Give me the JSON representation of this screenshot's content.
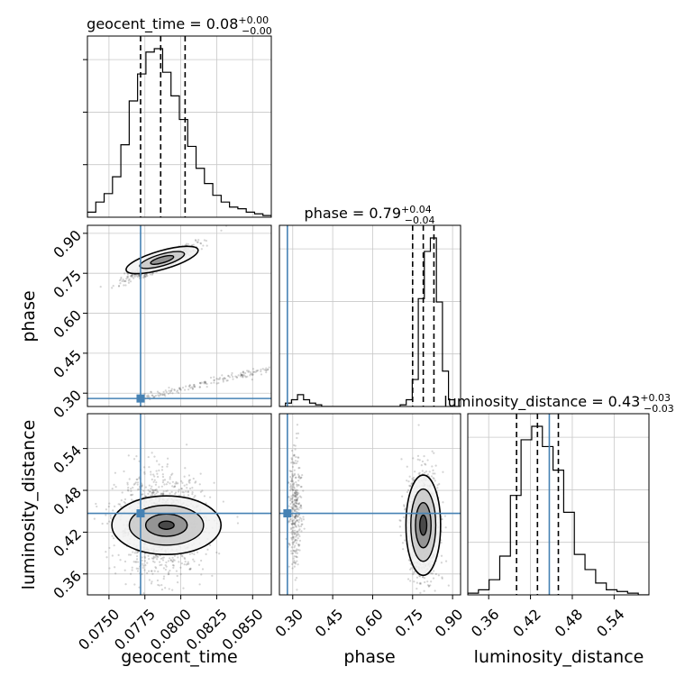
{
  "chart_data": {
    "type": "corner",
    "parameters": [
      {
        "name": "geocent_time",
        "median": "0.08",
        "err_plus": "+0.00",
        "err_minus": "−0.00",
        "range": [
          0.0735,
          0.0863
        ],
        "truth": 0.0772,
        "quantiles": [
          0.0772,
          0.0786,
          0.0803
        ],
        "ticks": [
          0.075,
          0.0775,
          0.08,
          0.0825,
          0.085
        ],
        "tick_labels": [
          "0.0750",
          "0.0775",
          "0.0800",
          "0.0825",
          "0.0850"
        ],
        "hist": [
          0.03,
          0.09,
          0.14,
          0.24,
          0.43,
          0.69,
          0.85,
          0.98,
          1.0,
          0.86,
          0.72,
          0.58,
          0.42,
          0.29,
          0.2,
          0.13,
          0.09,
          0.06,
          0.05,
          0.03,
          0.02,
          0.01
        ]
      },
      {
        "name": "phase",
        "median": "0.79",
        "err_plus": "+0.04",
        "err_minus": "−0.04",
        "range": [
          0.25,
          0.93
        ],
        "truth": 0.28,
        "quantiles": [
          0.75,
          0.79,
          0.83
        ],
        "ticks": [
          0.3,
          0.45,
          0.6,
          0.75,
          0.9
        ],
        "tick_labels": [
          "0.30",
          "0.45",
          "0.60",
          "0.75",
          "0.90"
        ],
        "hist": [
          0.0,
          0.02,
          0.04,
          0.07,
          0.04,
          0.02,
          0.01,
          0.0,
          0.0,
          0.0,
          0.0,
          0.0,
          0.0,
          0.0,
          0.0,
          0.0,
          0.0,
          0.0,
          0.0,
          0.0,
          0.01,
          0.04,
          0.16,
          0.64,
          0.92,
          1.0,
          0.62,
          0.21,
          0.04,
          0.0
        ]
      },
      {
        "name": "luminosity_distance",
        "median": "0.43",
        "err_plus": "+0.03",
        "err_minus": "−0.03",
        "range": [
          0.33,
          0.59
        ],
        "truth": 0.447,
        "quantiles": [
          0.4,
          0.43,
          0.46
        ],
        "ticks": [
          0.36,
          0.42,
          0.48,
          0.54
        ],
        "tick_labels": [
          "0.36",
          "0.42",
          "0.48",
          "0.54"
        ],
        "hist": [
          0.01,
          0.03,
          0.09,
          0.23,
          0.59,
          0.92,
          1.0,
          0.88,
          0.74,
          0.49,
          0.24,
          0.15,
          0.07,
          0.03,
          0.02,
          0.01,
          0.0
        ]
      }
    ],
    "truth_point": {
      "geocent_time": 0.0772,
      "phase": 0.28,
      "luminosity_distance": 0.447
    },
    "contour_levels": 3,
    "grid": true
  },
  "colors": {
    "truth": "#4682b4",
    "grid": "#c8c8c8",
    "contour": "#000000",
    "samples": "#555555"
  }
}
